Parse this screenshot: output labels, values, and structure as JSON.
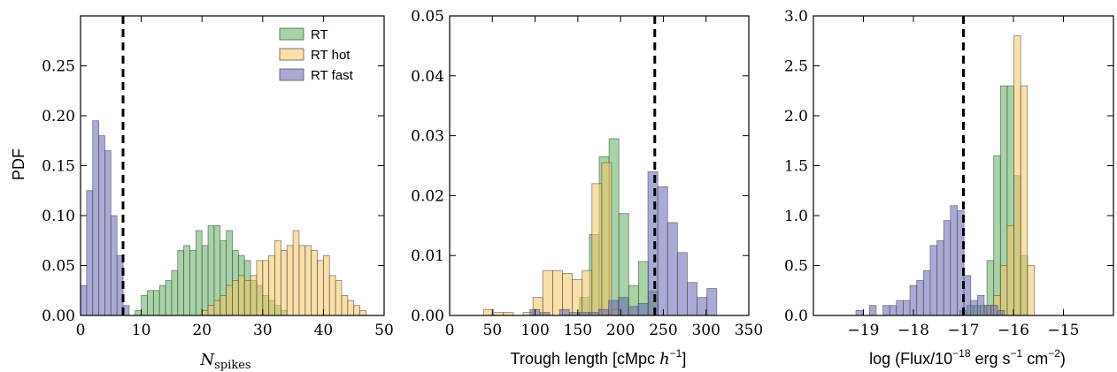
{
  "colors": {
    "RT": "#5fae5f",
    "RT hot": "#f6c660",
    "RT fast": "#6565b6",
    "refline": "#000000"
  },
  "chart_data": [
    {
      "type": "bar",
      "subtype": "histogram",
      "ylabel": "PDF",
      "xlabel": "N_spikes",
      "xlabel_main": "N",
      "xlabel_sub": "spikes",
      "xlim": [
        0,
        50
      ],
      "ylim": [
        0,
        0.3
      ],
      "xticks": [
        "0",
        "10",
        "20",
        "30",
        "40",
        "50"
      ],
      "xtick_values": [
        0,
        10,
        20,
        30,
        40,
        50
      ],
      "yticks": [
        "0.00",
        "0.05",
        "0.10",
        "0.15",
        "0.20",
        "0.25"
      ],
      "ytick_values": [
        0,
        0.05,
        0.1,
        0.15,
        0.2,
        0.25
      ],
      "vline": 7,
      "legend": {
        "placement": "top-right",
        "entries": [
          "RT",
          "RT hot",
          "RT fast"
        ]
      },
      "series": [
        {
          "name": "RT",
          "bin_width": 1,
          "x": [
            9,
            10,
            11,
            12,
            13,
            14,
            15,
            16,
            17,
            18,
            19,
            20,
            21,
            22,
            23,
            24,
            25,
            26,
            27,
            28,
            29,
            30,
            31,
            32,
            33
          ],
          "values": [
            0.005,
            0.02,
            0.025,
            0.025,
            0.03,
            0.035,
            0.045,
            0.065,
            0.07,
            0.065,
            0.085,
            0.07,
            0.09,
            0.09,
            0.075,
            0.085,
            0.065,
            0.06,
            0.055,
            0.035,
            0.03,
            0.02,
            0.015,
            0.01,
            0.005
          ]
        },
        {
          "name": "RT hot",
          "bin_width": 1,
          "x": [
            20,
            21,
            22,
            23,
            24,
            25,
            26,
            27,
            28,
            29,
            30,
            31,
            32,
            33,
            34,
            35,
            36,
            37,
            38,
            39,
            40,
            41,
            42,
            43,
            44,
            45,
            46
          ],
          "values": [
            0.005,
            0.01,
            0.015,
            0.02,
            0.03,
            0.035,
            0.04,
            0.035,
            0.04,
            0.055,
            0.055,
            0.06,
            0.075,
            0.065,
            0.07,
            0.085,
            0.07,
            0.07,
            0.065,
            0.055,
            0.06,
            0.04,
            0.035,
            0.02,
            0.015,
            0.01,
            0.005
          ]
        },
        {
          "name": "RT fast",
          "bin_width": 1,
          "x": [
            0,
            1,
            2,
            3,
            4,
            5,
            6,
            7
          ],
          "values": [
            0.03,
            0.125,
            0.195,
            0.18,
            0.165,
            0.1,
            0.06,
            0.01
          ]
        }
      ]
    },
    {
      "type": "bar",
      "subtype": "histogram",
      "xlabel_main": "Trough length [cMpc ",
      "xlabel_var": "h",
      "xlabel_sup": "−1",
      "xlabel_end": "]",
      "xlim": [
        0,
        350
      ],
      "ylim": [
        0,
        0.05
      ],
      "xticks": [
        "0",
        "50",
        "100",
        "150",
        "200",
        "250",
        "300",
        "350"
      ],
      "xtick_values": [
        0,
        50,
        100,
        150,
        200,
        250,
        300,
        350
      ],
      "yticks": [
        "0.00",
        "0.01",
        "0.02",
        "0.03",
        "0.04",
        "0.05"
      ],
      "ytick_values": [
        0,
        0.01,
        0.02,
        0.03,
        0.04,
        0.05
      ],
      "vline": 240,
      "series": [
        {
          "name": "RT",
          "bin_width": 11.5,
          "x": [
            152,
            163.5,
            175,
            186.5,
            198,
            209.5,
            221,
            232.5
          ],
          "values": [
            0.003,
            0.0135,
            0.0265,
            0.0295,
            0.017,
            0.005,
            0.009,
            0.004
          ]
        },
        {
          "name": "RT hot",
          "bin_width": 11.5,
          "x": [
            40,
            51.5,
            63,
            74.5,
            86,
            97.5,
            109,
            120.5,
            132,
            143.5,
            155,
            166.5,
            178,
            189.5
          ],
          "values": [
            0.001,
            0.0005,
            0.0005,
            0.0,
            0.0005,
            0.003,
            0.0075,
            0.0075,
            0.007,
            0.006,
            0.0075,
            0.022,
            0.0255,
            0.001
          ]
        },
        {
          "name": "RT fast",
          "bin_width": 11.5,
          "x": [
            94,
            105.5,
            117,
            128.5,
            140,
            151.5,
            163,
            174.5,
            186,
            197.5,
            209,
            220.5,
            232,
            243.5,
            255,
            266.5,
            278,
            289.5,
            301
          ],
          "values": [
            0.001,
            0.0005,
            0.0,
            0.001,
            0.0005,
            0.0005,
            0.0005,
            0.001,
            0.0025,
            0.003,
            0.0015,
            0.002,
            0.024,
            0.0215,
            0.0155,
            0.0105,
            0.0055,
            0.003,
            0.0045
          ]
        }
      ]
    },
    {
      "type": "bar",
      "subtype": "histogram",
      "xlabel_main": "log (Flux/10",
      "xlabel_sup1": "−18",
      "xlabel_mid": " erg s",
      "xlabel_sup2": "−1",
      "xlabel_mid2": " cm",
      "xlabel_sup3": "−2",
      "xlabel_end": ")",
      "xlim": [
        -20,
        -14
      ],
      "ylim": [
        0,
        3.0
      ],
      "xticks": [
        "−19",
        "−18",
        "−17",
        "−16",
        "−15"
      ],
      "xtick_values": [
        -19,
        -18,
        -17,
        -16,
        -15
      ],
      "yticks": [
        "0.0",
        "0.5",
        "1.0",
        "1.5",
        "2.0",
        "2.5",
        "3.0"
      ],
      "ytick_values": [
        0,
        0.5,
        1.0,
        1.5,
        2.0,
        2.5,
        3.0
      ],
      "vline": -17,
      "series": [
        {
          "name": "RT",
          "bin_width": 0.135,
          "x": [
            -17.07,
            -16.935,
            -16.8,
            -16.665,
            -16.53,
            -16.395,
            -16.26,
            -16.125,
            -15.99,
            -15.855
          ],
          "values": [
            0.05,
            0.1,
            0.1,
            0.1,
            0.55,
            1.6,
            2.3,
            2.3,
            1.4,
            0.6
          ]
        },
        {
          "name": "RT hot",
          "bin_width": 0.135,
          "x": [
            -16.665,
            -16.53,
            -16.395,
            -16.26,
            -16.125,
            -15.99,
            -15.855,
            -15.72
          ],
          "values": [
            0.0,
            0.1,
            0.2,
            0.5,
            0.9,
            2.8,
            2.3,
            0.5
          ]
        },
        {
          "name": "RT fast",
          "bin_width": 0.135,
          "x": [
            -19.15,
            -19.015,
            -18.88,
            -18.745,
            -18.61,
            -18.475,
            -18.34,
            -18.205,
            -18.07,
            -17.935,
            -17.8,
            -17.665,
            -17.53,
            -17.395,
            -17.26,
            -17.125,
            -16.99,
            -16.855,
            -16.72,
            -16.585,
            -16.45,
            -16.315
          ],
          "values": [
            0.05,
            0.0,
            0.1,
            0.0,
            0.1,
            0.1,
            0.15,
            0.15,
            0.3,
            0.35,
            0.45,
            0.7,
            0.75,
            0.95,
            1.1,
            1.05,
            0.4,
            0.15,
            0.2,
            0.1,
            0.1,
            0.05
          ]
        }
      ]
    }
  ]
}
